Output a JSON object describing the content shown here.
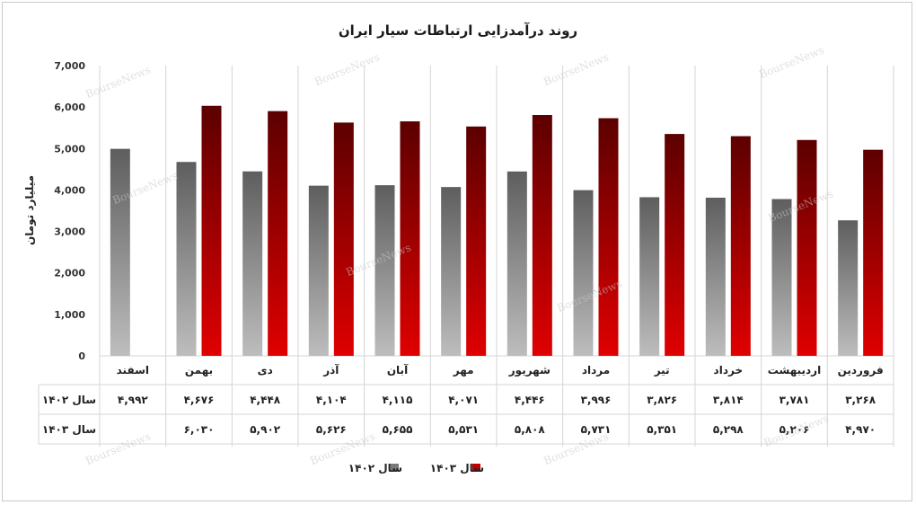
{
  "chart_data": {
    "type": "bar",
    "title": "روند درآمدزایی ارتباطات سیار ایران",
    "ylabel": "میلیارد تومان",
    "ylim": [
      0,
      7000
    ],
    "yticks": [
      0,
      1000,
      2000,
      3000,
      4000,
      5000,
      6000,
      7000
    ],
    "ytick_labels": [
      "0",
      "1,000",
      "2,000",
      "3,000",
      "4,000",
      "5,000",
      "6,000",
      "7,000"
    ],
    "categories": [
      "فروردین",
      "اردیبهشت",
      "خرداد",
      "تیر",
      "مرداد",
      "شهریور",
      "مهر",
      "آبان",
      "آذر",
      "دی",
      "بهمن",
      "اسفند"
    ],
    "series": [
      {
        "name": "سال ۱۴۰۲",
        "color": "#7a7a7a",
        "values": [
          3268,
          3781,
          3814,
          3826,
          3996,
          4446,
          4071,
          4115,
          4104,
          4448,
          4676,
          4992
        ],
        "labels": [
          "۳,۲۶۸",
          "۳,۷۸۱",
          "۳,۸۱۴",
          "۳,۸۲۶",
          "۳,۹۹۶",
          "۴,۴۴۶",
          "۴,۰۷۱",
          "۴,۱۱۵",
          "۴,۱۰۴",
          "۴,۴۴۸",
          "۴,۶۷۶",
          "۴,۹۹۲"
        ]
      },
      {
        "name": "سال ۱۴۰۳",
        "color": "#c00000",
        "values": [
          4970,
          5206,
          5298,
          5351,
          5731,
          5808,
          5531,
          5655,
          5626,
          5902,
          6030,
          null
        ],
        "labels": [
          "۴,۹۷۰",
          "۵,۲۰۶",
          "۵,۲۹۸",
          "۵,۳۵۱",
          "۵,۷۳۱",
          "۵,۸۰۸",
          "۵,۵۳۱",
          "۵,۶۵۵",
          "۵,۶۲۶",
          "۵,۹۰۲",
          "۶,۰۳۰",
          ""
        ]
      }
    ],
    "table_row_labels": [
      "سال ۱۴۰۲",
      "سال ۱۴۰۳"
    ],
    "legend": [
      "سال ۱۴۰۲",
      "سال ۱۴۰۳"
    ],
    "legend_position": "bottom",
    "grid": "vertical category separators",
    "watermark": "BourseNews"
  }
}
